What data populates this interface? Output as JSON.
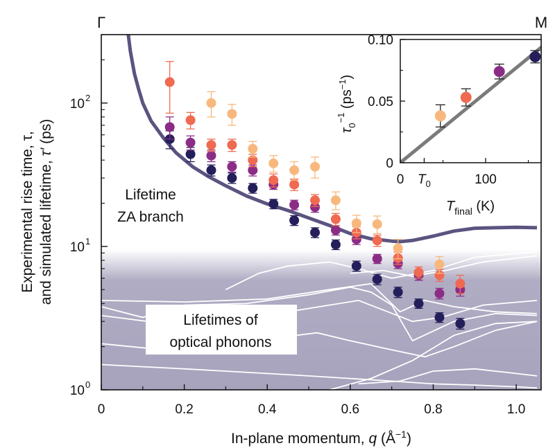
{
  "chart_data": {
    "type": "scatter",
    "xlabel_prefix": "In-plane momentum, ",
    "xlabel_var": "q",
    "xlabel_unit": " (Å",
    "xlabel_exp": "−1",
    "xlabel_close": ")",
    "ylabel_line1": "Experimental rise time, τ,",
    "ylabel_line2_a": "and simulated lifetime, ",
    "ylabel_line2_var": "τ′",
    "ylabel_line2_b": " (ps)",
    "xlim": [
      0,
      1.06
    ],
    "ylim": [
      1,
      300
    ],
    "yscale": "log",
    "x_ticks": [
      {
        "value": 0,
        "label": "0"
      },
      {
        "value": 0.2,
        "label": "0.2"
      },
      {
        "value": 0.4,
        "label": "0.4"
      },
      {
        "value": 0.6,
        "label": "0.6"
      },
      {
        "value": 0.8,
        "label": "0.8"
      },
      {
        "value": 1.0,
        "label": "1.0"
      }
    ],
    "y_ticks": [
      {
        "value": 1,
        "base": "10",
        "exp": "0"
      },
      {
        "value": 10,
        "base": "10",
        "exp": "1"
      },
      {
        "value": 100,
        "base": "10",
        "exp": "2"
      }
    ],
    "corner_left": "Γ",
    "corner_right": "M",
    "shaded_region": {
      "ymax": 9.5,
      "color": "#a7a3bd"
    },
    "annotations": {
      "za_line1": "Lifetime",
      "za_line2": "ZA branch",
      "optical_line1": "Lifetimes of",
      "optical_line2": "optical phonons"
    },
    "za_branch": {
      "color": "#5b5480",
      "x": [
        0.065,
        0.07,
        0.08,
        0.09,
        0.1,
        0.12,
        0.15,
        0.18,
        0.22,
        0.26,
        0.3,
        0.35,
        0.4,
        0.45,
        0.5,
        0.55,
        0.6,
        0.65,
        0.7,
        0.72,
        0.75,
        0.8,
        0.85,
        0.9,
        0.95,
        1.0,
        1.05
      ],
      "y": [
        300,
        230,
        160,
        125,
        100,
        75,
        57,
        45,
        36,
        30.5,
        26.5,
        22.5,
        19.8,
        17.8,
        15.8,
        14.0,
        12.3,
        11.3,
        10.9,
        10.8,
        11.0,
        11.8,
        12.8,
        13.4,
        13.5,
        13.6,
        13.5
      ]
    },
    "optical_curves": [
      {
        "x": [
          0,
          0.2,
          0.4,
          0.55,
          0.65,
          0.72,
          0.78,
          0.85,
          0.95,
          1.05
        ],
        "y": [
          4.2,
          4.1,
          4.3,
          5.0,
          5.5,
          3.5,
          4.2,
          3.8,
          3.5,
          3.4
        ]
      },
      {
        "x": [
          0,
          0.1,
          0.2,
          0.35,
          0.5,
          0.6,
          0.65,
          0.7,
          0.75,
          0.85,
          0.95,
          1.05
        ],
        "y": [
          3.8,
          3.2,
          3.9,
          4.0,
          4.6,
          5.2,
          4.8,
          3.9,
          2.2,
          3.0,
          3.4,
          3.3
        ]
      },
      {
        "x": [
          0,
          0.15,
          0.3,
          0.45,
          0.55,
          0.62,
          0.68,
          0.75,
          0.82,
          0.92,
          1.05
        ],
        "y": [
          3.3,
          2.9,
          3.3,
          3.5,
          3.9,
          4.2,
          3.6,
          3.0,
          3.2,
          3.9,
          4.2
        ]
      },
      {
        "x": [
          0,
          0.15,
          0.3,
          0.42,
          0.52,
          0.6,
          0.7,
          0.78,
          0.85,
          0.95,
          1.05
        ],
        "y": [
          2.1,
          1.9,
          2.1,
          2.3,
          2.5,
          2.2,
          1.9,
          1.7,
          2.0,
          2.6,
          3.0
        ]
      },
      {
        "x": [
          0,
          0.1,
          0.2,
          0.3,
          0.4,
          0.5,
          0.6,
          0.7,
          0.8,
          0.9,
          1.0,
          1.05
        ],
        "y": [
          1.5,
          1.45,
          1.4,
          1.35,
          1.3,
          1.25,
          1.2,
          1.15,
          1.1,
          1.08,
          1.05,
          1.03
        ]
      },
      {
        "x": [
          0.55,
          0.65,
          0.75,
          0.85,
          0.95,
          1.05
        ],
        "y": [
          1.0,
          1.2,
          1.6,
          2.4,
          2.9,
          3.0
        ]
      },
      {
        "x": [
          0.3,
          0.38,
          0.45,
          0.55,
          0.62,
          0.7,
          0.8,
          0.9,
          1.05
        ],
        "y": [
          5.0,
          6.5,
          7.3,
          7.8,
          7.0,
          6.0,
          6.8,
          8.4,
          9.2
        ]
      },
      {
        "x": [
          0.6,
          0.68,
          0.75,
          0.83,
          0.92,
          1.05
        ],
        "y": [
          6.5,
          6.8,
          6.2,
          6.8,
          7.8,
          8.6
        ]
      },
      {
        "x": [
          0.62,
          0.72,
          0.8,
          0.9,
          1.0,
          1.05
        ],
        "y": [
          1.1,
          1.15,
          1.35,
          1.4,
          1.3,
          1.25
        ]
      }
    ],
    "series": [
      {
        "name": "dark",
        "color": "#241f5a",
        "x": [
          0.165,
          0.215,
          0.265,
          0.315,
          0.365,
          0.415,
          0.465,
          0.515,
          0.565,
          0.615,
          0.665,
          0.715,
          0.765,
          0.815,
          0.865
        ],
        "y": [
          56,
          44,
          34,
          30,
          25.5,
          19.8,
          15.2,
          12.5,
          10.3,
          7.3,
          5.9,
          4.8,
          4.0,
          3.2,
          2.9
        ],
        "err": [
          8,
          5,
          3,
          2.5,
          2,
          1.5,
          1.2,
          1.0,
          0.8,
          0.6,
          0.5,
          0.4,
          0.3,
          0.25,
          0.25
        ]
      },
      {
        "name": "purple",
        "color": "#8b2d86",
        "x": [
          0.165,
          0.215,
          0.265,
          0.315,
          0.365,
          0.415,
          0.465,
          0.515,
          0.565,
          0.615,
          0.665,
          0.715,
          0.765,
          0.815,
          0.865
        ],
        "y": [
          68,
          53,
          43,
          36,
          34,
          27,
          19.5,
          18.8,
          13.0,
          11.2,
          8.2,
          7.6,
          6.3,
          4.7,
          5.0
        ],
        "err": [
          12,
          6,
          4,
          3,
          3,
          2,
          1.5,
          1.5,
          1.0,
          0.9,
          0.6,
          0.6,
          0.5,
          0.4,
          0.5
        ]
      },
      {
        "name": "coral",
        "color": "#ef6a51",
        "x": [
          0.165,
          0.215,
          0.265,
          0.315,
          0.365,
          0.415,
          0.465,
          0.515,
          0.565,
          0.615,
          0.665,
          0.715,
          0.765,
          0.815,
          0.865
        ],
        "y": [
          140,
          76,
          51,
          51,
          40,
          29,
          27,
          21,
          15.5,
          12.5,
          11.0,
          8.3,
          6.6,
          6.3,
          5.5
        ],
        "err": [
          55,
          10,
          5,
          5,
          4,
          3,
          2.5,
          2,
          1.5,
          1.2,
          1.0,
          0.8,
          0.6,
          0.6,
          0.8
        ]
      },
      {
        "name": "peach",
        "color": "#f8b87d",
        "x": [
          0.265,
          0.315,
          0.365,
          0.415,
          0.465,
          0.515,
          0.565,
          0.615,
          0.665,
          0.715,
          0.815
        ],
        "y": [
          100,
          84,
          48,
          38,
          34,
          36,
          21,
          14.5,
          14.3,
          9.7,
          7.5
        ],
        "err": [
          20,
          14,
          6,
          5,
          5,
          6,
          3,
          2,
          2,
          1.5,
          1.0
        ]
      }
    ],
    "inset": {
      "type": "scatter",
      "xlabel": "T",
      "xlabel_sub": "final",
      "xlabel_unit": " (K)",
      "ylabel_base": "τ",
      "ylabel_sub": "0",
      "ylabel_exp": "−1",
      "ylabel_unit": " (ps",
      "ylabel_unit_exp": "−1",
      "ylabel_close": ")",
      "xlim": [
        0,
        165
      ],
      "ylim": [
        0,
        0.1
      ],
      "x_ticks": [
        {
          "value": 0,
          "label": "0"
        },
        {
          "value": 100,
          "label": "100"
        }
      ],
      "t0_tick": {
        "value": 28,
        "base": "T",
        "sub": "0"
      },
      "y_ticks": [
        {
          "value": 0,
          "label": "0"
        },
        {
          "value": 0.05,
          "label": "0.05"
        },
        {
          "value": 0.1,
          "label": "0.10"
        }
      ],
      "fit_line": {
        "color": "#7b7b7b",
        "x": [
          0,
          172
        ],
        "y": [
          0,
          0.0975
        ]
      },
      "points": [
        {
          "x": 47,
          "y": 0.038,
          "err": 0.009,
          "color": "#f8b87d"
        },
        {
          "x": 77,
          "y": 0.053,
          "err": 0.007,
          "color": "#ef6a51"
        },
        {
          "x": 116,
          "y": 0.074,
          "err": 0.006,
          "color": "#8b2d86"
        },
        {
          "x": 158,
          "y": 0.086,
          "err": 0.005,
          "color": "#241f5a"
        }
      ]
    }
  }
}
